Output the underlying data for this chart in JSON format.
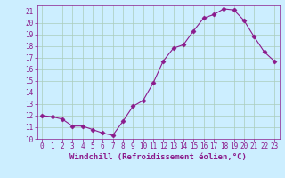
{
  "x": [
    0,
    1,
    2,
    3,
    4,
    5,
    6,
    7,
    8,
    9,
    10,
    11,
    12,
    13,
    14,
    15,
    16,
    17,
    18,
    19,
    20,
    21,
    22,
    23
  ],
  "y": [
    12.0,
    11.9,
    11.7,
    11.1,
    11.1,
    10.8,
    10.5,
    10.3,
    11.5,
    12.8,
    13.3,
    14.8,
    16.7,
    17.8,
    18.1,
    19.3,
    20.4,
    20.7,
    21.2,
    21.1,
    20.2,
    18.8,
    17.5,
    16.7
  ],
  "line_color": "#8B1A8B",
  "marker": "D",
  "marker_size": 2.5,
  "bg_color": "#cceeff",
  "grid_color": "#aaccbb",
  "xlabel": "Windchill (Refroidissement éolien,°C)",
  "ylabel": "",
  "title": "",
  "xlim": [
    -0.5,
    23.5
  ],
  "ylim": [
    10,
    21.5
  ],
  "yticks": [
    10,
    11,
    12,
    13,
    14,
    15,
    16,
    17,
    18,
    19,
    20,
    21
  ],
  "xticks": [
    0,
    1,
    2,
    3,
    4,
    5,
    6,
    7,
    8,
    9,
    10,
    11,
    12,
    13,
    14,
    15,
    16,
    17,
    18,
    19,
    20,
    21,
    22,
    23
  ],
  "tick_fontsize": 5.5,
  "xlabel_fontsize": 6.5
}
